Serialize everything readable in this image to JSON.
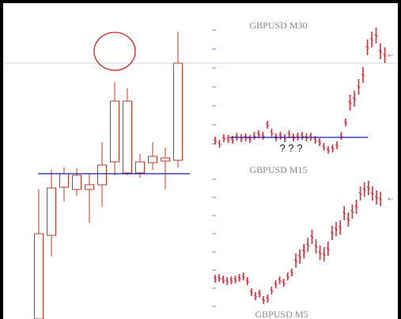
{
  "panels": {
    "top_title": "GBPUSD M30",
    "middle_title": "GBPUSD M15",
    "bottom_title": "GBPUSD M5",
    "annotation": "? ? ?"
  }
}
